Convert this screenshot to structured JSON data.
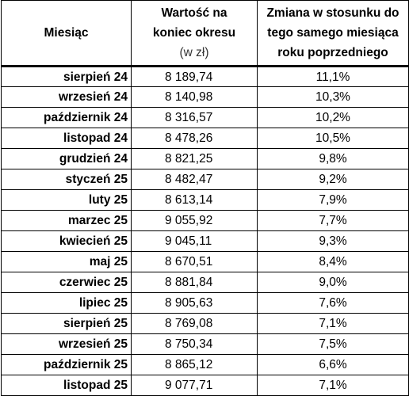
{
  "table": {
    "headers": {
      "month": "Miesiąc",
      "value_line1": "Wartość na",
      "value_line2": "koniec okresu",
      "value_unit": "(w zł)",
      "change_line1": "Zmiana w stosunku do",
      "change_line2": "tego samego miesiąca",
      "change_line3": "roku poprzedniego"
    },
    "rows": [
      {
        "month": "sierpień 24",
        "value": "8 189,74",
        "change": "11,1%"
      },
      {
        "month": "wrzesień 24",
        "value": "8 140,98",
        "change": "10,3%"
      },
      {
        "month": "październik 24",
        "value": "8 316,57",
        "change": "10,2%"
      },
      {
        "month": "listopad 24",
        "value": "8 478,26",
        "change": "10,5%"
      },
      {
        "month": "grudzień 24",
        "value": "8 821,25",
        "change": "9,8%"
      },
      {
        "month": "styczeń 25",
        "value": "8 482,47",
        "change": "9,2%"
      },
      {
        "month": "luty 25",
        "value": "8 613,14",
        "change": "7,9%"
      },
      {
        "month": "marzec 25",
        "value": "9 055,92",
        "change": "7,7%"
      },
      {
        "month": "kwiecień 25",
        "value": "9 045,11",
        "change": "9,3%"
      },
      {
        "month": "maj 25",
        "value": "8 670,51",
        "change": "8,4%"
      },
      {
        "month": "czerwiec 25",
        "value": "8 881,84",
        "change": "9,0%"
      },
      {
        "month": "lipiec 25",
        "value": "8 905,63",
        "change": "7,6%"
      },
      {
        "month": "sierpień 25",
        "value": "8 769,08",
        "change": "7,1%"
      },
      {
        "month": "wrzesień 25",
        "value": "8 750,34",
        "change": "7,5%"
      },
      {
        "month": "październik 25",
        "value": "8 865,12",
        "change": "6,6%"
      },
      {
        "month": "listopad 25",
        "value": "9 077,71",
        "change": "7,1%"
      }
    ]
  }
}
